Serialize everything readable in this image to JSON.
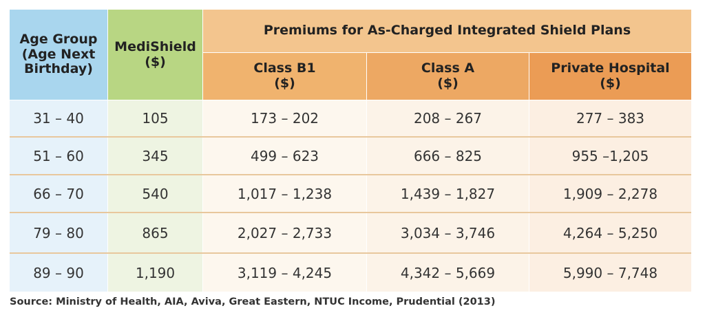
{
  "chart_data": {
    "type": "table",
    "headers": {
      "age_group": [
        "Age Group",
        "(Age Next",
        "Birthday)"
      ],
      "medishield": [
        "MediShield",
        "($)"
      ],
      "premiums_group": "Premiums for As-Charged Integrated Shield Plans",
      "class_b1": [
        "Class B1",
        "($)"
      ],
      "class_a": [
        "Class A",
        "($)"
      ],
      "private_hospital": [
        "Private Hospital",
        "($)"
      ]
    },
    "rows": [
      {
        "age": "31 – 40",
        "medishield": "105",
        "class_b1": "173 – 202",
        "class_a": "208 – 267",
        "private_hospital": "277 – 383"
      },
      {
        "age": "51 – 60",
        "medishield": "345",
        "class_b1": "499 – 623",
        "class_a": "666 – 825",
        "private_hospital": "955 –1,205"
      },
      {
        "age": "66 – 70",
        "medishield": "540",
        "class_b1": "1,017 – 1,238",
        "class_a": "1,439 – 1,827",
        "private_hospital": "1,909 – 2,278"
      },
      {
        "age": "79 – 80",
        "medishield": "865",
        "class_b1": "2,027 – 2,733",
        "class_a": "3,034 – 3,746",
        "private_hospital": "4,264 – 5,250"
      },
      {
        "age": "89 – 90",
        "medishield": "1,190",
        "class_b1": "3,119 – 4,245",
        "class_a": "4,342 – 5,669",
        "private_hospital": "5,990 – 7,748"
      }
    ],
    "source": "Source: Ministry of Health, AIA, Aviva, Great Eastern, NTUC Income, Prudential (2013)",
    "colors": {
      "age_header": "#a9d6ee",
      "medishield_header": "#b8d683",
      "premiums_header": "#f3c58e",
      "class_b1_header": "#f0b36e",
      "class_a_header": "#eda863",
      "private_hospital_header": "#eb9c55"
    }
  }
}
